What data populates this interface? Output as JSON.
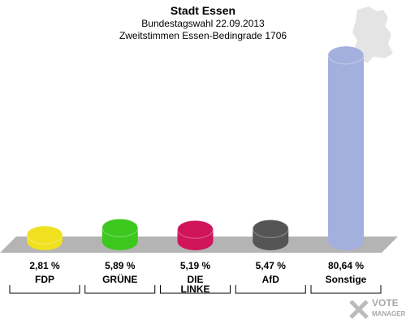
{
  "chart_data": {
    "type": "bar",
    "title": "Stadt Essen",
    "subtitle": "Bundestagswahl 22.09.2013",
    "subtitle2": "Zweitstimmen Essen-Bedingrade 1706",
    "categories": [
      "FDP",
      "GRÜNE",
      "DIE LINKE",
      "AfD",
      "Sonstige"
    ],
    "values": [
      2.81,
      5.89,
      5.19,
      5.47,
      80.64
    ],
    "value_labels": [
      "2,81 %",
      "5,89 %",
      "5,19 %",
      "5,47 %",
      "80,64 %"
    ],
    "colors": [
      "#f0e020",
      "#3cc81e",
      "#d0145a",
      "#555555",
      "#a3b0de"
    ],
    "watermark": [
      "VOTE",
      "MANAGER"
    ]
  }
}
